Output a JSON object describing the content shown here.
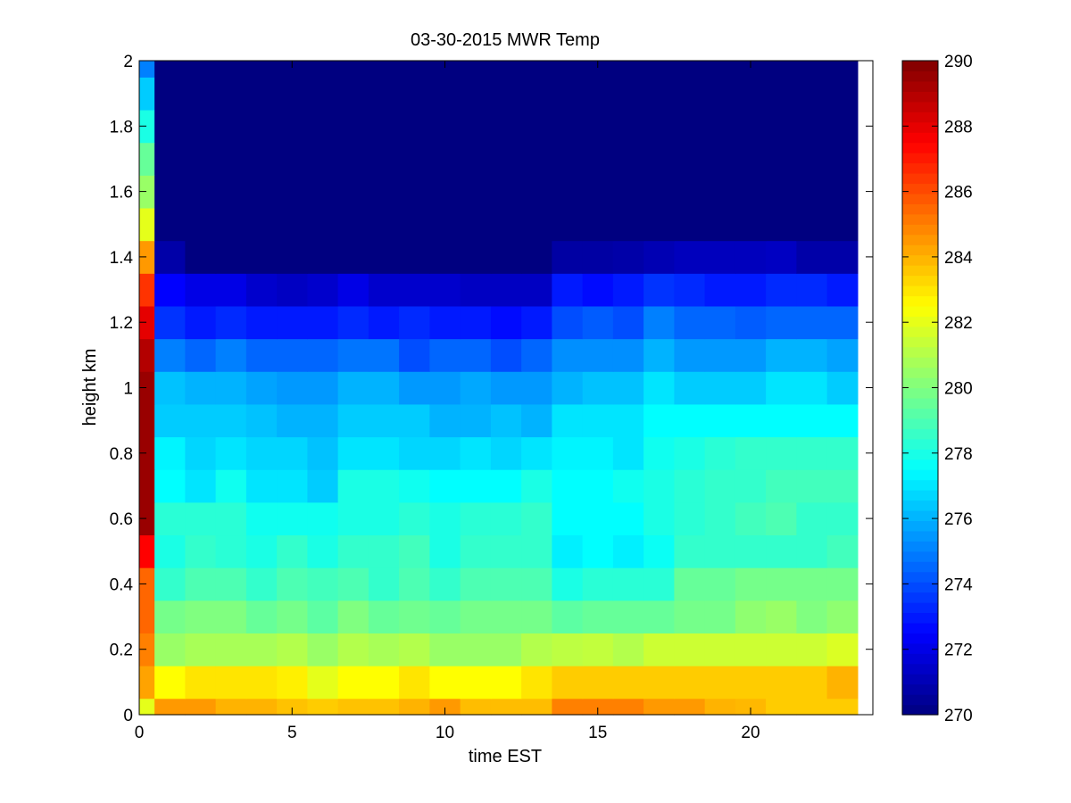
{
  "chart_data": {
    "type": "heatmap",
    "title": "03-30-2015 MWR Temp",
    "xlabel": "time EST",
    "ylabel": "height km",
    "xlim": [
      0,
      24
    ],
    "ylim": [
      0,
      2
    ],
    "x_ticks": [
      "0",
      "5",
      "10",
      "15",
      "20"
    ],
    "y_ticks": [
      "0",
      "0.2",
      "0.4",
      "0.6",
      "0.8",
      "1",
      "1.2",
      "1.4",
      "1.6",
      "1.8",
      "2"
    ],
    "colorbar": {
      "colormap": "jet",
      "clim": [
        270,
        290
      ],
      "ticks": [
        "270",
        "272",
        "274",
        "276",
        "278",
        "280",
        "282",
        "284",
        "286",
        "288",
        "290"
      ]
    },
    "x_centers": [
      0,
      1,
      2,
      3,
      4,
      5,
      6,
      7,
      8,
      9,
      10,
      11,
      12,
      13,
      14,
      15,
      16,
      17,
      18,
      19,
      20,
      21,
      22,
      23
    ],
    "y_centers": [
      0,
      0.1,
      0.2,
      0.3,
      0.4,
      0.5,
      0.6,
      0.7,
      0.8,
      0.9,
      1.0,
      1.1,
      1.2,
      1.3,
      1.4,
      1.5,
      1.6,
      1.7,
      1.8,
      1.9,
      2.0
    ],
    "temperature_K": [
      [
        282.0,
        284.5,
        284.5,
        284.0,
        284.0,
        283.7,
        283.5,
        283.7,
        283.7,
        284.0,
        284.5,
        283.8,
        283.8,
        283.8,
        285.0,
        285.0,
        285.0,
        284.5,
        284.5,
        284.0,
        283.9,
        283.5,
        283.5,
        283.5
      ],
      [
        284.3,
        282.5,
        283.0,
        283.0,
        283.0,
        282.8,
        282.0,
        282.5,
        282.5,
        283.0,
        282.5,
        282.5,
        282.5,
        283.0,
        283.5,
        283.5,
        283.5,
        283.5,
        283.5,
        283.5,
        283.5,
        283.5,
        283.5,
        284.0
      ],
      [
        285.0,
        280.5,
        280.8,
        280.8,
        280.8,
        281.0,
        280.5,
        281.0,
        280.8,
        281.0,
        280.5,
        280.5,
        280.5,
        281.0,
        281.2,
        281.3,
        281.0,
        281.5,
        281.5,
        281.5,
        281.5,
        281.5,
        281.5,
        281.8
      ],
      [
        285.5,
        279.8,
        280.0,
        280.0,
        279.5,
        279.8,
        279.3,
        280.0,
        279.5,
        279.7,
        279.5,
        279.8,
        279.8,
        279.8,
        279.3,
        279.5,
        279.5,
        279.5,
        279.8,
        279.8,
        280.3,
        280.5,
        280.0,
        280.3
      ],
      [
        285.5,
        278.5,
        279.0,
        279.0,
        278.5,
        279.0,
        278.8,
        279.0,
        278.5,
        279.0,
        278.5,
        279.0,
        279.0,
        279.0,
        278.0,
        278.3,
        278.3,
        278.3,
        279.5,
        279.5,
        279.8,
        279.8,
        279.8,
        279.8
      ],
      [
        287.5,
        278.0,
        278.5,
        278.3,
        278.0,
        278.5,
        278.0,
        278.5,
        278.5,
        278.8,
        278.0,
        278.5,
        278.5,
        278.5,
        277.2,
        277.5,
        277.2,
        277.7,
        278.5,
        278.5,
        278.5,
        278.5,
        278.5,
        278.8
      ],
      [
        289.5,
        278.3,
        278.3,
        278.3,
        277.8,
        277.8,
        277.8,
        278.0,
        278.0,
        278.3,
        278.0,
        278.3,
        278.3,
        278.5,
        277.5,
        277.5,
        277.5,
        278.0,
        278.3,
        278.5,
        278.8,
        279.0,
        278.5,
        278.5
      ],
      [
        289.5,
        277.5,
        277.0,
        277.8,
        277.0,
        277.0,
        276.5,
        278.0,
        278.0,
        277.8,
        277.5,
        277.5,
        277.5,
        278.0,
        277.5,
        277.5,
        277.8,
        278.0,
        278.3,
        278.5,
        278.5,
        278.8,
        278.8,
        278.8
      ],
      [
        289.5,
        277.3,
        276.7,
        277.0,
        276.7,
        276.7,
        276.3,
        277.0,
        277.0,
        276.7,
        276.7,
        277.0,
        276.7,
        277.0,
        277.3,
        277.3,
        277.0,
        277.8,
        278.0,
        278.3,
        278.5,
        278.5,
        278.5,
        278.5
      ],
      [
        289.5,
        276.5,
        276.5,
        276.5,
        276.3,
        276.0,
        276.0,
        276.5,
        276.5,
        276.5,
        276.0,
        276.0,
        276.3,
        276.0,
        277.0,
        277.0,
        277.0,
        277.5,
        277.5,
        277.5,
        277.5,
        277.5,
        277.5,
        277.5
      ],
      [
        289.5,
        276.3,
        276.0,
        276.0,
        275.7,
        275.5,
        275.5,
        276.0,
        276.0,
        275.5,
        275.5,
        275.8,
        275.5,
        275.5,
        276.0,
        276.3,
        276.3,
        277.0,
        276.5,
        276.5,
        276.5,
        277.0,
        277.0,
        276.5
      ],
      [
        289.0,
        275.0,
        274.5,
        275.0,
        274.5,
        274.5,
        274.5,
        274.8,
        274.8,
        274.0,
        274.5,
        274.5,
        274.0,
        274.5,
        275.3,
        275.3,
        275.3,
        276.0,
        275.5,
        275.5,
        275.5,
        276.0,
        276.0,
        275.7
      ],
      [
        288.0,
        273.5,
        273.0,
        273.3,
        273.0,
        273.0,
        273.0,
        273.3,
        273.0,
        273.3,
        273.0,
        273.0,
        272.7,
        273.0,
        274.0,
        274.3,
        274.0,
        275.0,
        274.5,
        274.5,
        274.3,
        274.5,
        274.5,
        274.5
      ],
      [
        286.5,
        272.5,
        272.0,
        272.0,
        271.5,
        271.3,
        271.5,
        272.0,
        271.5,
        271.5,
        271.5,
        271.3,
        271.3,
        271.3,
        273.0,
        272.7,
        273.0,
        273.5,
        273.3,
        273.0,
        273.0,
        273.3,
        273.3,
        273.0
      ],
      [
        284.5,
        270.8,
        270.0,
        270.0,
        270.0,
        270.0,
        270.0,
        270.0,
        270.0,
        270.0,
        270.0,
        270.0,
        270.0,
        270.0,
        270.7,
        270.7,
        270.8,
        271.0,
        271.2,
        271.2,
        271.2,
        271.3,
        270.8,
        270.8
      ],
      [
        282.0,
        270.0,
        270.0,
        270.0,
        270.0,
        270.0,
        270.0,
        270.0,
        270.0,
        270.0,
        270.0,
        270.0,
        270.0,
        270.0,
        270.0,
        270.0,
        270.0,
        270.0,
        270.0,
        270.0,
        270.0,
        270.0,
        270.0,
        270.0
      ],
      [
        280.5,
        270.0,
        270.0,
        270.0,
        270.0,
        270.0,
        270.0,
        270.0,
        270.0,
        270.0,
        270.0,
        270.0,
        270.0,
        270.0,
        270.0,
        270.0,
        270.0,
        270.0,
        270.0,
        270.0,
        270.0,
        270.0,
        270.0,
        270.0
      ],
      [
        279.5,
        270.0,
        270.0,
        270.0,
        270.0,
        270.0,
        270.0,
        270.0,
        270.0,
        270.0,
        270.0,
        270.0,
        270.0,
        270.0,
        270.0,
        270.0,
        270.0,
        270.0,
        270.0,
        270.0,
        270.0,
        270.0,
        270.0,
        270.0
      ],
      [
        278.0,
        270.0,
        270.0,
        270.0,
        270.0,
        270.0,
        270.0,
        270.0,
        270.0,
        270.0,
        270.0,
        270.0,
        270.0,
        270.0,
        270.0,
        270.0,
        270.0,
        270.0,
        270.0,
        270.0,
        270.0,
        270.0,
        270.0,
        270.0
      ],
      [
        276.5,
        270.0,
        270.0,
        270.0,
        270.0,
        270.0,
        270.0,
        270.0,
        270.0,
        270.0,
        270.0,
        270.0,
        270.0,
        270.0,
        270.0,
        270.0,
        270.0,
        270.0,
        270.0,
        270.0,
        270.0,
        270.0,
        270.0,
        270.0
      ],
      [
        275.0,
        270.0,
        270.0,
        270.0,
        270.0,
        270.0,
        270.0,
        270.0,
        270.0,
        270.0,
        270.0,
        270.0,
        270.0,
        270.0,
        270.0,
        270.0,
        270.0,
        270.0,
        270.0,
        270.0,
        270.0,
        270.0,
        270.0,
        270.0
      ]
    ]
  }
}
